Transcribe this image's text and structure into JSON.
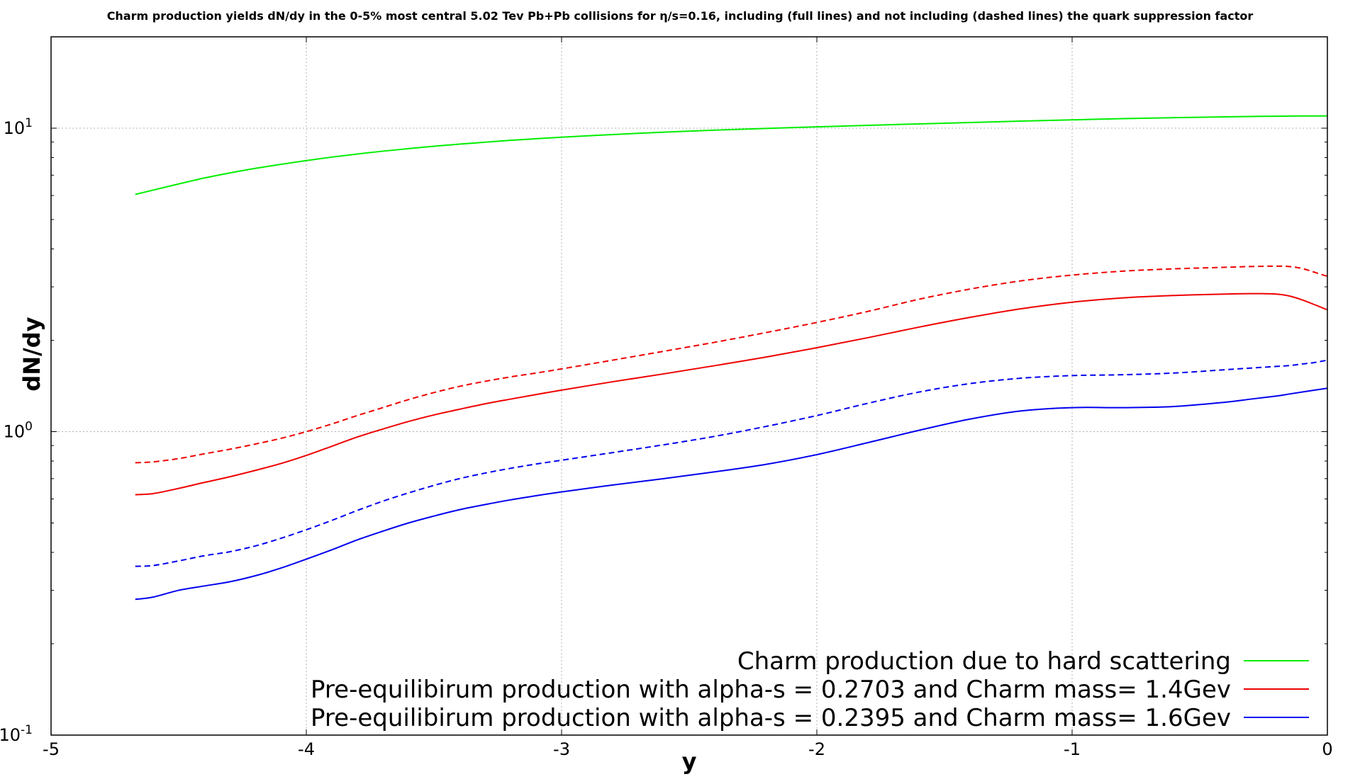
{
  "chart_data": {
    "type": "line",
    "title": "Charm production yields dN/dy in the 0-5% most central 5.02 Tev Pb+Pb collisions for η/s=0.16, including (full lines) and not including (dashed lines) the quark suppression factor",
    "xlabel": "y",
    "ylabel": "dN/dy",
    "xlim": [
      -5,
      0
    ],
    "ylim": [
      0.1,
      20
    ],
    "yscale": "log",
    "grid": true,
    "legend_position": "lower-right",
    "x_ticks": [
      "-5",
      "-4",
      "-3",
      "-2",
      "-1",
      "0"
    ],
    "x_tick_values": [
      -5,
      -4,
      -3,
      -2,
      -1,
      0
    ],
    "y_ticks": [
      {
        "value": 0.1,
        "base": "10",
        "exp": "-1"
      },
      {
        "value": 1,
        "base": "10",
        "exp": "0"
      },
      {
        "value": 10,
        "base": "10",
        "exp": "1"
      }
    ],
    "x": [
      -4.67,
      -4.6,
      -4.5,
      -4.4,
      -4.3,
      -4.2,
      -4.1,
      -4.0,
      -3.9,
      -3.8,
      -3.7,
      -3.6,
      -3.5,
      -3.4,
      -3.3,
      -3.2,
      -3.1,
      -3.0,
      -2.8,
      -2.6,
      -2.4,
      -2.2,
      -2.0,
      -1.8,
      -1.6,
      -1.4,
      -1.2,
      -1.0,
      -0.8,
      -0.6,
      -0.4,
      -0.3,
      -0.2,
      -0.15,
      -0.1,
      -0.05,
      0.0
    ],
    "series": [
      {
        "name": "Charm production due to hard scattering",
        "color": "#00ee00",
        "style": "solid",
        "values": [
          6.05,
          6.25,
          6.55,
          6.85,
          7.12,
          7.37,
          7.6,
          7.82,
          8.03,
          8.22,
          8.4,
          8.56,
          8.72,
          8.86,
          8.99,
          9.12,
          9.23,
          9.34,
          9.53,
          9.7,
          9.85,
          9.98,
          10.1,
          10.22,
          10.33,
          10.44,
          10.55,
          10.65,
          10.75,
          10.83,
          10.9,
          10.93,
          10.95,
          10.96,
          10.97,
          10.97,
          10.98
        ]
      },
      {
        "name": "Pre-equilibirum production with alpha-s = 0.2703 and Charm mass= 1.4Gev",
        "color": "#ee0000",
        "style": "solid",
        "values": [
          0.62,
          0.625,
          0.65,
          0.68,
          0.71,
          0.745,
          0.785,
          0.835,
          0.895,
          0.96,
          1.02,
          1.08,
          1.135,
          1.185,
          1.235,
          1.28,
          1.325,
          1.37,
          1.46,
          1.55,
          1.65,
          1.76,
          1.89,
          2.04,
          2.21,
          2.38,
          2.54,
          2.67,
          2.76,
          2.81,
          2.84,
          2.85,
          2.84,
          2.8,
          2.72,
          2.62,
          2.52
        ]
      },
      {
        "name": "",
        "color": "#ee0000",
        "style": "dashed",
        "values": [
          0.79,
          0.795,
          0.815,
          0.845,
          0.875,
          0.91,
          0.95,
          1.0,
          1.06,
          1.13,
          1.2,
          1.275,
          1.345,
          1.41,
          1.465,
          1.515,
          1.56,
          1.61,
          1.72,
          1.84,
          1.97,
          2.12,
          2.29,
          2.49,
          2.73,
          2.95,
          3.14,
          3.28,
          3.38,
          3.44,
          3.48,
          3.5,
          3.51,
          3.5,
          3.45,
          3.35,
          3.25
        ]
      },
      {
        "name": "Pre-equilibirum production with alpha-s = 0.2395 and Charm mass= 1.6Gev",
        "color": "#0000ee",
        "style": "solid",
        "values": [
          0.28,
          0.285,
          0.3,
          0.31,
          0.32,
          0.335,
          0.355,
          0.38,
          0.408,
          0.44,
          0.47,
          0.5,
          0.527,
          0.553,
          0.575,
          0.596,
          0.615,
          0.633,
          0.667,
          0.7,
          0.737,
          0.78,
          0.84,
          0.92,
          1.01,
          1.1,
          1.17,
          1.2,
          1.2,
          1.21,
          1.25,
          1.28,
          1.31,
          1.33,
          1.35,
          1.37,
          1.39
        ]
      },
      {
        "name": "",
        "color": "#0000ee",
        "style": "dashed",
        "values": [
          0.36,
          0.362,
          0.375,
          0.39,
          0.402,
          0.42,
          0.445,
          0.475,
          0.51,
          0.55,
          0.59,
          0.628,
          0.665,
          0.7,
          0.73,
          0.757,
          0.782,
          0.805,
          0.853,
          0.905,
          0.965,
          1.04,
          1.13,
          1.24,
          1.35,
          1.44,
          1.5,
          1.53,
          1.54,
          1.56,
          1.6,
          1.62,
          1.64,
          1.65,
          1.67,
          1.69,
          1.72
        ]
      }
    ]
  }
}
